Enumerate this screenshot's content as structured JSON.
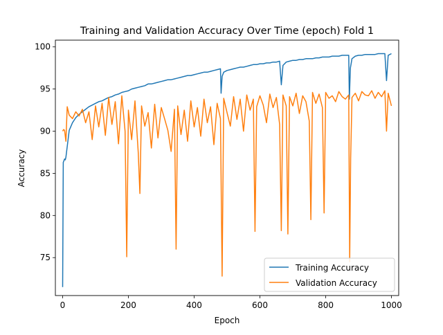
{
  "chart_data": {
    "type": "line",
    "title": "Training and Validation Accuracy Over Time (epoch) Fold 1",
    "xlabel": "Epoch",
    "ylabel": "Accuracy",
    "xlim": [
      -22,
      1022
    ],
    "ylim": [
      70.5,
      100.8
    ],
    "x_ticks": [
      0,
      200,
      400,
      600,
      800,
      1000
    ],
    "y_ticks": [
      75,
      80,
      85,
      90,
      95,
      100
    ],
    "legend_position": "lower-right",
    "grid": false,
    "series": [
      {
        "name": "Training Accuracy",
        "color": "#1f77b4",
        "x": [
          0,
          2,
          4,
          6,
          8,
          10,
          15,
          20,
          30,
          40,
          50,
          60,
          70,
          80,
          90,
          100,
          110,
          120,
          130,
          140,
          150,
          160,
          170,
          180,
          190,
          200,
          210,
          220,
          230,
          240,
          250,
          260,
          270,
          280,
          290,
          300,
          310,
          320,
          330,
          340,
          350,
          360,
          370,
          380,
          390,
          400,
          410,
          420,
          430,
          440,
          450,
          460,
          470,
          480,
          482,
          485,
          490,
          500,
          510,
          520,
          530,
          540,
          550,
          560,
          570,
          580,
          590,
          600,
          610,
          620,
          630,
          640,
          650,
          660,
          665,
          670,
          680,
          690,
          700,
          710,
          720,
          730,
          740,
          750,
          760,
          770,
          780,
          790,
          800,
          810,
          820,
          830,
          840,
          850,
          860,
          870,
          872,
          875,
          880,
          890,
          900,
          910,
          920,
          930,
          940,
          950,
          960,
          970,
          980,
          985,
          990,
          1000
        ],
        "y": [
          71.5,
          86.3,
          86.5,
          86.7,
          86.6,
          86.9,
          88.5,
          90.1,
          91.0,
          91.6,
          92.0,
          92.3,
          92.6,
          92.9,
          93.1,
          93.3,
          93.5,
          93.6,
          93.8,
          94.0,
          94.1,
          94.3,
          94.4,
          94.6,
          94.7,
          94.8,
          95.0,
          95.1,
          95.2,
          95.3,
          95.4,
          95.6,
          95.6,
          95.7,
          95.8,
          95.9,
          96.0,
          96.1,
          96.1,
          96.2,
          96.3,
          96.4,
          96.5,
          96.6,
          96.6,
          96.7,
          96.8,
          96.9,
          97.0,
          97.0,
          97.1,
          97.2,
          97.3,
          97.4,
          94.5,
          96.5,
          97.0,
          97.2,
          97.3,
          97.4,
          97.5,
          97.6,
          97.6,
          97.7,
          97.8,
          97.9,
          97.9,
          98.0,
          98.0,
          98.1,
          98.1,
          98.2,
          98.2,
          98.3,
          95.5,
          97.8,
          98.2,
          98.3,
          98.4,
          98.4,
          98.5,
          98.5,
          98.6,
          98.6,
          98.6,
          98.7,
          98.7,
          98.8,
          98.8,
          98.8,
          98.9,
          98.9,
          98.9,
          99.0,
          99.0,
          99.0,
          93.8,
          97.5,
          98.6,
          98.9,
          99.0,
          99.0,
          99.1,
          99.1,
          99.1,
          99.1,
          99.2,
          99.2,
          99.2,
          96.0,
          99.0,
          99.2
        ]
      },
      {
        "name": "Validation Accuracy",
        "color": "#ff7f0e",
        "x": [
          0,
          3,
          6,
          10,
          14,
          20,
          30,
          40,
          50,
          60,
          70,
          80,
          90,
          100,
          110,
          120,
          130,
          140,
          150,
          160,
          170,
          180,
          190,
          195,
          200,
          210,
          220,
          230,
          235,
          240,
          250,
          260,
          270,
          280,
          290,
          300,
          310,
          320,
          330,
          340,
          345,
          350,
          360,
          370,
          380,
          390,
          400,
          410,
          420,
          430,
          440,
          450,
          460,
          470,
          480,
          485,
          490,
          500,
          510,
          520,
          530,
          540,
          550,
          560,
          570,
          580,
          585,
          590,
          600,
          610,
          620,
          630,
          640,
          650,
          660,
          665,
          670,
          680,
          685,
          690,
          700,
          710,
          720,
          730,
          740,
          750,
          755,
          760,
          770,
          780,
          790,
          795,
          800,
          810,
          820,
          830,
          840,
          850,
          860,
          870,
          873,
          876,
          880,
          890,
          900,
          910,
          920,
          930,
          940,
          950,
          960,
          970,
          980,
          985,
          990,
          1000
        ],
        "y": [
          90.0,
          90.2,
          90.1,
          88.8,
          92.9,
          91.9,
          91.5,
          92.3,
          91.8,
          92.6,
          91.0,
          92.3,
          89.0,
          93.0,
          90.5,
          93.3,
          89.5,
          94.0,
          90.8,
          93.5,
          88.5,
          94.2,
          90.0,
          75.1,
          92.5,
          89.0,
          93.6,
          87.5,
          82.6,
          93.0,
          90.6,
          92.2,
          88.0,
          93.2,
          89.2,
          92.8,
          91.5,
          90.1,
          87.6,
          92.6,
          76.0,
          93.0,
          89.6,
          92.5,
          88.8,
          93.6,
          90.5,
          92.8,
          89.4,
          93.8,
          91.0,
          92.9,
          88.4,
          93.3,
          91.5,
          72.8,
          93.9,
          92.2,
          90.6,
          94.1,
          91.4,
          93.8,
          90.0,
          94.3,
          92.5,
          93.8,
          78.1,
          92.9,
          94.2,
          93.1,
          91.0,
          94.4,
          92.8,
          94.0,
          90.8,
          78.2,
          94.3,
          93.0,
          77.8,
          94.1,
          93.0,
          94.5,
          92.1,
          94.2,
          93.5,
          91.2,
          79.5,
          94.6,
          93.3,
          94.4,
          92.8,
          80.3,
          94.6,
          93.9,
          94.2,
          93.5,
          94.7,
          94.1,
          93.8,
          94.3,
          74.5,
          86.8,
          94.0,
          94.5,
          93.6,
          94.7,
          94.3,
          94.2,
          94.8,
          93.9,
          94.6,
          94.1,
          94.8,
          90.0,
          94.5,
          93.0
        ]
      }
    ]
  }
}
